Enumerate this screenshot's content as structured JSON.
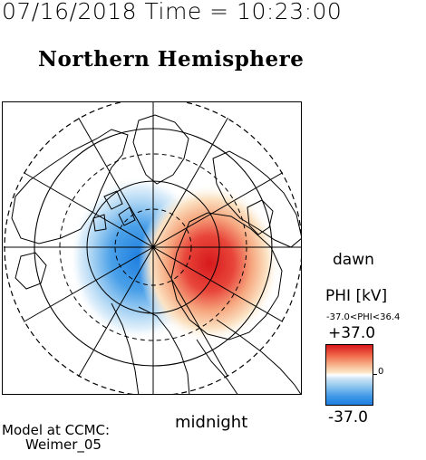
{
  "header": {
    "timestamp": "07/16/2018 Time = 10:23:00",
    "title": "Northern Hemisphere"
  },
  "map": {
    "dawn_label": "dawn",
    "midnight_label": "midnight"
  },
  "colorbar": {
    "title": "PHI [kV]",
    "range_text": "-37.0<PHI<36.4",
    "max_label": "+37.0",
    "mid_label": "0",
    "min_label": "-37.0",
    "colors": {
      "positive": "#d7191c",
      "zero": "#ffffff",
      "negative": "#1f7fe0"
    }
  },
  "footer": {
    "model_line1": "Model at CCMC:",
    "model_line2": "Weimer_05"
  }
}
